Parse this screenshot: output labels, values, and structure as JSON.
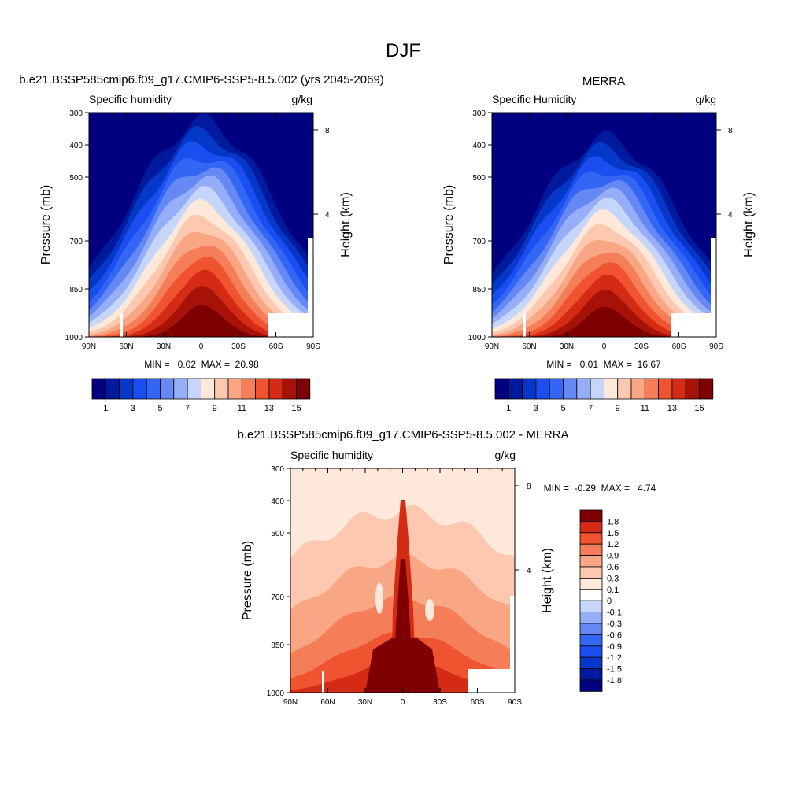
{
  "figure_title": "DJF",
  "chart_data": [
    {
      "type": "heatmap",
      "id": "model",
      "title": "b.e21.BSSP585cmip6.f09_g17.CMIP6-SSP5-8.5.002 (yrs 2045-2069)",
      "left_label": "Specific humidity",
      "right_label": "g/kg",
      "ylabel": "Pressure (mb)",
      "ylabel_right": "Height (km)",
      "x_ticks": [
        "90N",
        "60N",
        "30N",
        "0",
        "30S",
        "60S",
        "90S"
      ],
      "y_ticks": [
        "300",
        "400",
        "500",
        "700",
        "850",
        "1000"
      ],
      "height_ticks": [
        "8",
        "4"
      ],
      "stats_text": "MIN =   0.02  MAX =  20.98",
      "min": 0.02,
      "max": 20.98,
      "colorbar_labels": [
        "1",
        "3",
        "5",
        "7",
        "9",
        "11",
        "13",
        "15"
      ],
      "levels": [
        1,
        2,
        3,
        4,
        5,
        6,
        7,
        8,
        9,
        10,
        11,
        12,
        13,
        14,
        15
      ]
    },
    {
      "type": "heatmap",
      "id": "obs",
      "title": "MERRA",
      "left_label": "Specific Humidity",
      "right_label": "g/kg",
      "ylabel": "Pressure (mb)",
      "ylabel_right": "Height (km)",
      "x_ticks": [
        "90N",
        "60N",
        "30N",
        "0",
        "30S",
        "60S",
        "90S"
      ],
      "y_ticks": [
        "300",
        "400",
        "500",
        "700",
        "850",
        "1000"
      ],
      "height_ticks": [
        "8",
        "4"
      ],
      "stats_text": "MIN =   0.01  MAX =  16.67",
      "min": 0.01,
      "max": 16.67,
      "colorbar_labels": [
        "1",
        "3",
        "5",
        "7",
        "9",
        "11",
        "13",
        "15"
      ],
      "levels": [
        1,
        2,
        3,
        4,
        5,
        6,
        7,
        8,
        9,
        10,
        11,
        12,
        13,
        14,
        15
      ]
    },
    {
      "type": "heatmap",
      "id": "diff",
      "title": "b.e21.BSSP585cmip6.f09_g17.CMIP6-SSP5-8.5.002 - MERRA",
      "left_label": "Specific humidity",
      "right_label": "g/kg",
      "ylabel": "Pressure (mb)",
      "ylabel_right": "Height (km)",
      "x_ticks": [
        "90N",
        "60N",
        "30N",
        "0",
        "30S",
        "60S",
        "90S"
      ],
      "y_ticks": [
        "300",
        "400",
        "500",
        "700",
        "850",
        "1000"
      ],
      "height_ticks": [
        "8",
        "4"
      ],
      "stats_text": "MIN =  -0.29  MAX =   4.74",
      "min": -0.29,
      "max": 4.74,
      "colorbar_labels": [
        "1.8",
        "1.5",
        "1.2",
        "0.9",
        "0.6",
        "0.3",
        "0.1",
        "0",
        "-0.1",
        "-0.3",
        "-0.6",
        "-0.9",
        "-1.2",
        "-1.5",
        "-1.8"
      ],
      "levels": [
        -1.8,
        -1.5,
        -1.2,
        -0.9,
        -0.6,
        -0.3,
        -0.1,
        0,
        0.1,
        0.3,
        0.6,
        0.9,
        1.2,
        1.5,
        1.8
      ]
    }
  ],
  "colors": {
    "seq16": [
      "#000080",
      "#001a9e",
      "#0538c9",
      "#1a4ef0",
      "#3366f5",
      "#6688f5",
      "#95aef7",
      "#c6d6fa",
      "#fde8da",
      "#fcc9b0",
      "#f8a684",
      "#f57e58",
      "#f05330",
      "#d42b14",
      "#a71208",
      "#7e0000"
    ],
    "div16": [
      "#000080",
      "#001a9e",
      "#0538c9",
      "#1a4ef0",
      "#3366f5",
      "#6688f5",
      "#95aef7",
      "#c6d6fa",
      "#ffffff",
      "#fde8da",
      "#fcc9b0",
      "#f8a684",
      "#f57e58",
      "#f05330",
      "#d42b14",
      "#7e0000"
    ]
  }
}
